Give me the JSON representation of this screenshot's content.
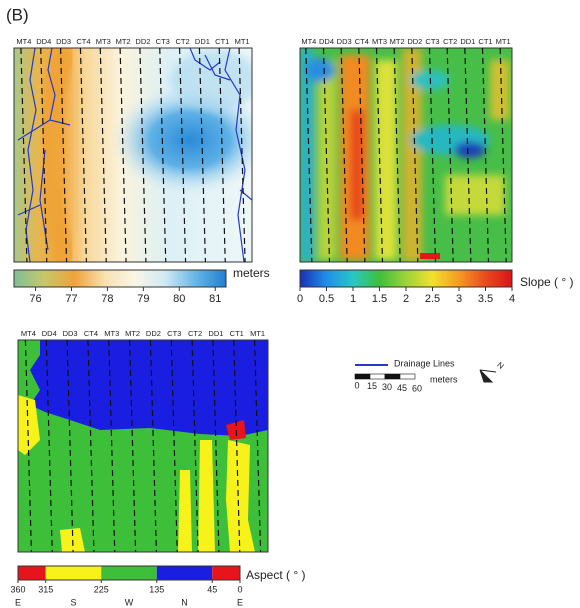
{
  "panel_label": "(B)",
  "transects": [
    {
      "label": "MT4",
      "color": "#222222"
    },
    {
      "label": "DD4",
      "color": "#1f3fa8"
    },
    {
      "label": "DD3",
      "color": "#1f3fa8"
    },
    {
      "label": "CT4",
      "color": "#d42020"
    },
    {
      "label": "MT3",
      "color": "#222222"
    },
    {
      "label": "MT2",
      "color": "#222222"
    },
    {
      "label": "DD2",
      "color": "#1f3fa8"
    },
    {
      "label": "CT3",
      "color": "#d42020"
    },
    {
      "label": "CT2",
      "color": "#d42020"
    },
    {
      "label": "DD1",
      "color": "#1f3fa8"
    },
    {
      "label": "CT1",
      "color": "#d42020"
    },
    {
      "label": "MT1",
      "color": "#222222"
    }
  ],
  "elevation": {
    "unit": "meters",
    "lim": [
      75.4,
      81.3
    ],
    "ticks": [
      76,
      77,
      78,
      79,
      80,
      81
    ],
    "colors": [
      "#7fbf96",
      "#c8c76a",
      "#eea33a",
      "#f7e2b0",
      "#fbf6e6",
      "#cfe9f3",
      "#66b6e6",
      "#1f7fd0"
    ]
  },
  "slope": {
    "unit": "Slope ( ° )",
    "lim": [
      0,
      4
    ],
    "ticks": [
      0,
      0.5,
      1,
      1.5,
      2,
      2.5,
      3,
      3.5,
      4
    ],
    "colors": [
      "#1b2fb8",
      "#1f8ee8",
      "#26c9c4",
      "#3fbf3c",
      "#9ed238",
      "#f2e12c",
      "#f59a22",
      "#ea4a1c",
      "#d8141a"
    ]
  },
  "aspect": {
    "unit": "Aspect ( ° )",
    "lim": [
      360,
      0
    ],
    "ticks": [
      360,
      315,
      225,
      135,
      45,
      0
    ],
    "classes": [
      {
        "from": 360,
        "to": 315,
        "color": "#e8141c"
      },
      {
        "from": 315,
        "to": 225,
        "color": "#f7f21a"
      },
      {
        "from": 225,
        "to": 135,
        "color": "#3dbf3a"
      },
      {
        "from": 135,
        "to": 45,
        "color": "#1a1ee0"
      },
      {
        "from": 45,
        "to": 0,
        "color": "#e8141c"
      }
    ],
    "directions": [
      {
        "value": 360,
        "label": "E"
      },
      {
        "value": 270,
        "label": "S"
      },
      {
        "value": 180,
        "label": "W"
      },
      {
        "value": 90,
        "label": "N"
      },
      {
        "value": 0,
        "label": "E"
      }
    ]
  },
  "legend": {
    "drainage": "Drainage Lines",
    "drainage_color": "#2638c8",
    "scale_lim": [
      0,
      60
    ],
    "scale_ticks": [
      0,
      15,
      30,
      45,
      60
    ],
    "scale_unit": "meters",
    "north": "N"
  }
}
